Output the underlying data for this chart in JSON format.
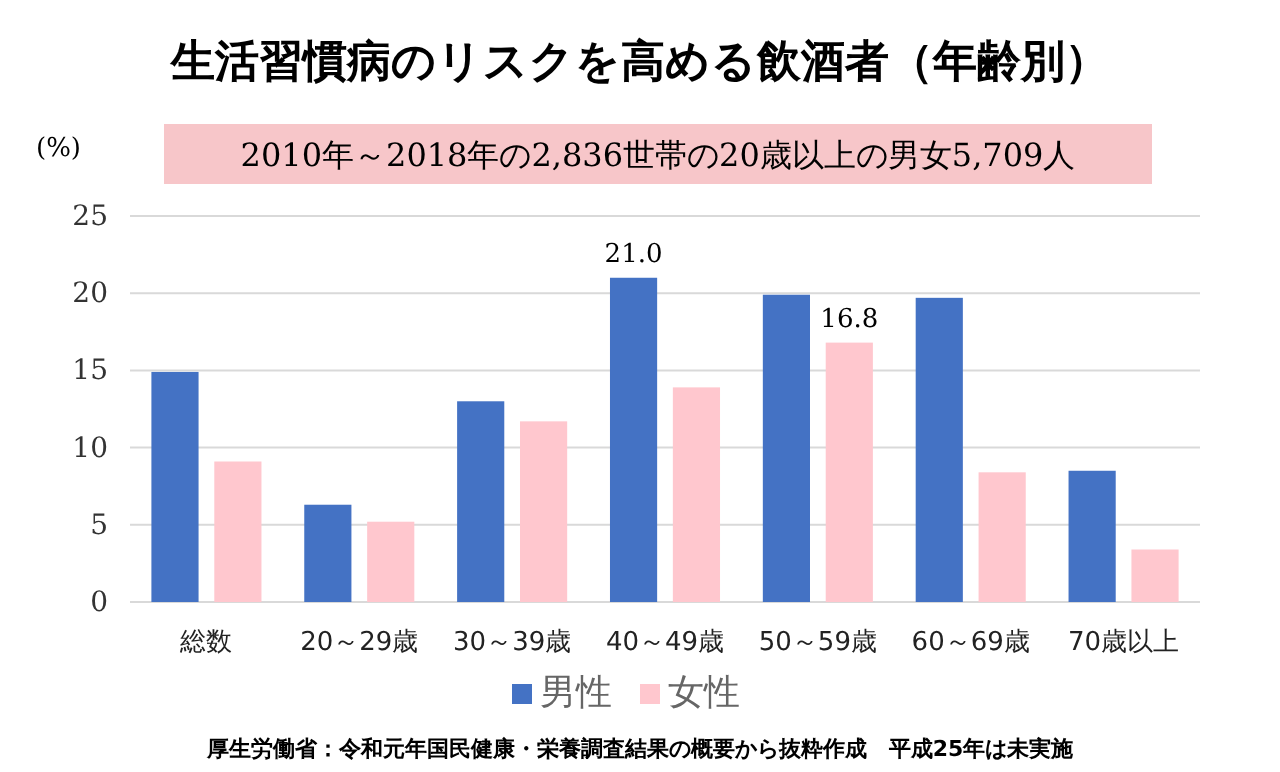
{
  "chart_data": {
    "type": "bar",
    "title": "生活習慣病のリスクを高める飲酒者（年齢別）",
    "subtitle": "2010年～2018年の2,836世帯の20歳以上の男女5,709人",
    "ylabel": "(%)",
    "annotations": [
      "厚生労働省：令和元年国民健康・栄養調査結果の概要から抜粋作成　平成25年は未実施"
    ],
    "categories": [
      "総数",
      "20～29歳",
      "30～39歳",
      "40～49歳",
      "50～59歳",
      "60～69歳",
      "70歳以上"
    ],
    "series": [
      {
        "name": "男性",
        "color": "#4472c4",
        "values": [
          14.9,
          6.3,
          13.0,
          21.0,
          19.9,
          19.7,
          8.5
        ],
        "value_labels": [
          null,
          null,
          null,
          "21.0",
          null,
          null,
          null
        ]
      },
      {
        "name": "女性",
        "color": "#ffc7ce",
        "values": [
          9.1,
          5.2,
          11.7,
          13.9,
          16.8,
          8.4,
          3.4
        ],
        "value_labels": [
          null,
          null,
          null,
          null,
          "16.8",
          null,
          null
        ]
      }
    ],
    "ylim": [
      0,
      25
    ],
    "yticks": [
      0,
      5,
      10,
      15,
      20,
      25
    ],
    "grid": "y",
    "legend": "bottom"
  }
}
